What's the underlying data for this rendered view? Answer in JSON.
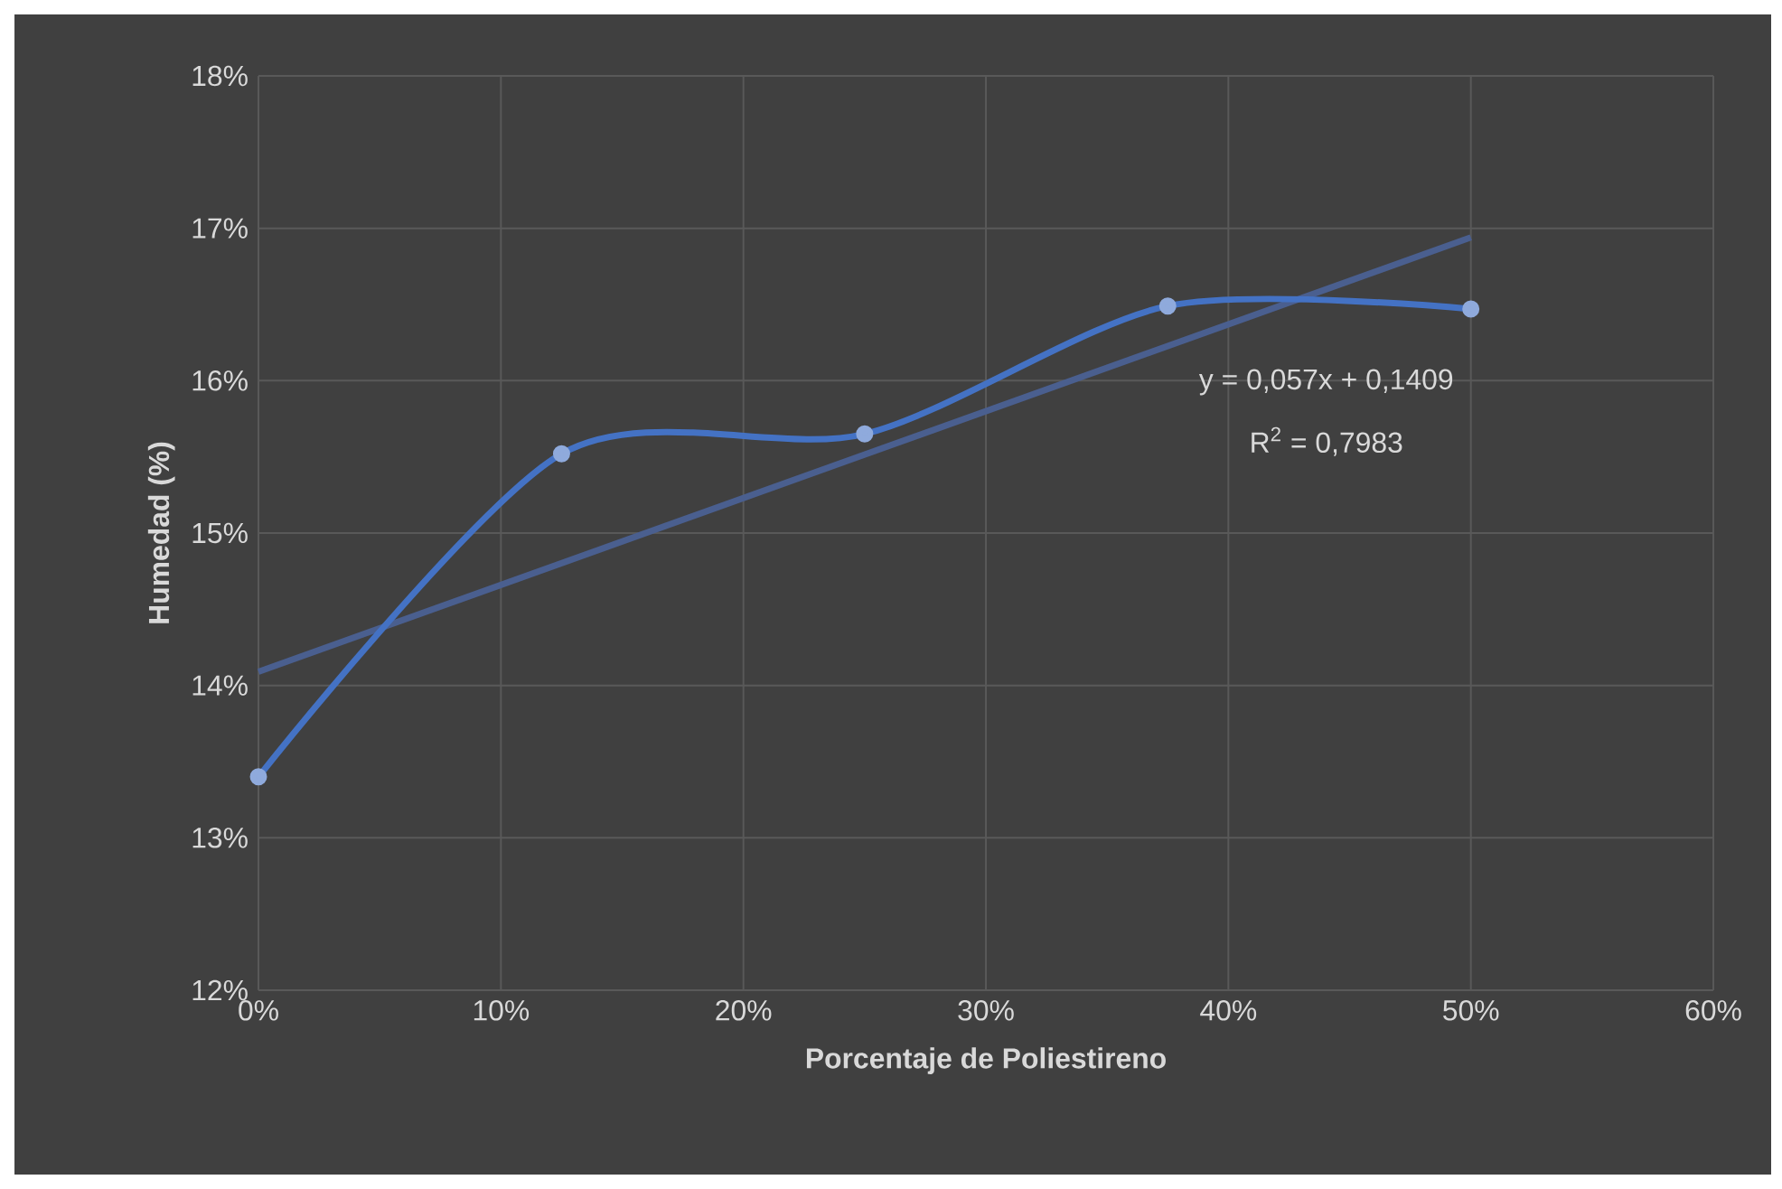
{
  "chart_data": {
    "type": "line",
    "xlabel": "Porcentaje de Poliestireno",
    "ylabel": "Humedad (%)",
    "xlim": [
      0,
      60
    ],
    "ylim": [
      12,
      18
    ],
    "xticks": [
      {
        "value": 0,
        "label": "0%"
      },
      {
        "value": 10,
        "label": "10%"
      },
      {
        "value": 20,
        "label": "20%"
      },
      {
        "value": 30,
        "label": "30%"
      },
      {
        "value": 40,
        "label": "40%"
      },
      {
        "value": 50,
        "label": "50%"
      },
      {
        "value": 60,
        "label": "60%"
      }
    ],
    "yticks": [
      {
        "value": 12,
        "label": "12%"
      },
      {
        "value": 13,
        "label": "13%"
      },
      {
        "value": 14,
        "label": "14%"
      },
      {
        "value": 15,
        "label": "15%"
      },
      {
        "value": 16,
        "label": "16%"
      },
      {
        "value": 17,
        "label": "17%"
      },
      {
        "value": 18,
        "label": "18%"
      }
    ],
    "grid": true,
    "marker": "circle",
    "line_style": "solid",
    "series": [
      {
        "x": [
          0,
          12.5,
          25,
          37.5,
          50
        ],
        "values": [
          13.4,
          15.52,
          15.65,
          16.49,
          16.47
        ],
        "color": "#4472c4"
      },
      {
        "x": [
          0,
          50
        ],
        "values": [
          14.09,
          16.94
        ],
        "color": "#4a5f8f",
        "marker": "none"
      }
    ],
    "annotations": [
      "y = 0,057x + 0,1409",
      "R$^{2}$ = 0,7983"
    ]
  }
}
